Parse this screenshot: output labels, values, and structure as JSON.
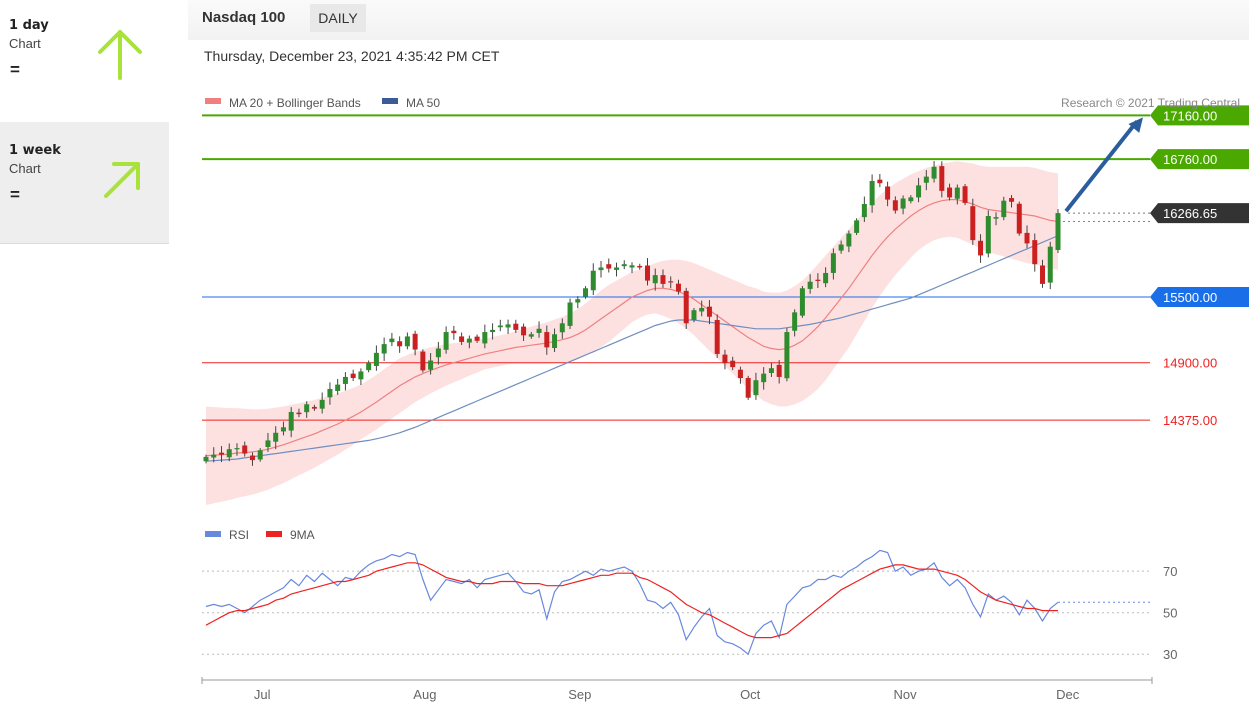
{
  "left_panel": {
    "periods": [
      {
        "name": "1 day",
        "label": "Chart",
        "symbol": "=",
        "arrow": "up-arrow",
        "arrow_color": "#a8e23a"
      },
      {
        "name": "1 week",
        "label": "Chart",
        "symbol": "=",
        "arrow": "up-right-arrow",
        "arrow_color": "#a8e23a"
      }
    ]
  },
  "header": {
    "title": "Nasdaq 100",
    "timeframe": "DAILY",
    "datetime": "Thursday, December 23, 2021 4:35:42 PM CET"
  },
  "chart_data": [
    {
      "type": "candlestick",
      "title": "Nasdaq 100",
      "legend": [
        {
          "name": "MA 20 + Bollinger Bands",
          "color": "#f08080"
        },
        {
          "name": "MA 50",
          "color": "#3a5a9a"
        }
      ],
      "copyright": "Research © 2021 Trading Central",
      "x_tick_labels": [
        "Jul",
        "Aug",
        "Sep",
        "Oct",
        "Nov",
        "Dec"
      ],
      "ylim": [
        13600,
        17300
      ],
      "levels": [
        {
          "label": "17160.00",
          "value": 17160,
          "kind": "resistance",
          "color": "#4aa800"
        },
        {
          "label": "16760.00",
          "value": 16760,
          "kind": "resistance",
          "color": "#4aa800"
        },
        {
          "label": "16266.65",
          "value": 16266.65,
          "kind": "last",
          "color": "#333333"
        },
        {
          "label": "15500.00",
          "value": 15500,
          "kind": "pivot",
          "color": "#1a6fe8"
        },
        {
          "label": "14900.00",
          "value": 14900,
          "kind": "support",
          "color": "#ee2222"
        },
        {
          "label": "14375.00",
          "value": 14375,
          "kind": "support",
          "color": "#ee2222"
        }
      ],
      "projection": {
        "from": 16266.65,
        "to": 17160,
        "color": "#2b5c9e"
      },
      "close": [
        14040,
        14060,
        14060,
        14110,
        14120,
        14070,
        14010,
        14100,
        14190,
        14260,
        14310,
        14450,
        14430,
        14520,
        14480,
        14560,
        14660,
        14700,
        14770,
        14760,
        14820,
        14900,
        14990,
        15070,
        15120,
        15050,
        15140,
        15020,
        14830,
        14920,
        15030,
        15180,
        15170,
        15090,
        15120,
        15100,
        15180,
        15200,
        15240,
        15250,
        15200,
        15150,
        15160,
        15210,
        15040,
        15160,
        15260,
        15450,
        15480,
        15580,
        15740,
        15770,
        15760,
        15770,
        15800,
        15790,
        15770,
        15650,
        15700,
        15620,
        15640,
        15550,
        15260,
        15380,
        15400,
        15320,
        14980,
        14900,
        14860,
        14760,
        14580,
        14740,
        14800,
        14850,
        14770,
        15180,
        15360,
        15580,
        15640,
        15650,
        15720,
        15900,
        15980,
        16080,
        16200,
        16350,
        16560,
        16540,
        16390,
        16290,
        16400,
        16410,
        16520,
        16600,
        16690,
        16470,
        16410,
        16500,
        16360,
        16020,
        15880,
        16240,
        16230,
        16380,
        16370,
        16080,
        15990,
        15800,
        15620,
        15960,
        16266.65
      ],
      "ma20": [
        14050,
        14055,
        14060,
        14065,
        14075,
        14080,
        14085,
        14095,
        14110,
        14130,
        14150,
        14175,
        14200,
        14225,
        14250,
        14280,
        14310,
        14340,
        14375,
        14410,
        14450,
        14495,
        14540,
        14590,
        14640,
        14690,
        14730,
        14770,
        14800,
        14830,
        14855,
        14880,
        14900,
        14920,
        14940,
        14960,
        14980,
        14995,
        15010,
        15025,
        15040,
        15050,
        15060,
        15070,
        15080,
        15095,
        15110,
        15130,
        15160,
        15200,
        15250,
        15300,
        15350,
        15400,
        15450,
        15500,
        15530,
        15560,
        15580,
        15580,
        15570,
        15550,
        15520,
        15480,
        15430,
        15380,
        15330,
        15280,
        15230,
        15180,
        15130,
        15090,
        15050,
        15030,
        15020,
        15030,
        15060,
        15100,
        15160,
        15230,
        15310,
        15400,
        15490,
        15580,
        15680,
        15780,
        15880,
        15970,
        16050,
        16120,
        16180,
        16240,
        16290,
        16330,
        16360,
        16380,
        16390,
        16390,
        16370,
        16350,
        16320,
        16300,
        16290,
        16280,
        16270,
        16260,
        16250,
        16240,
        16220,
        16200,
        16190
      ],
      "ma50": [
        14000,
        14005,
        14010,
        14015,
        14020,
        14030,
        14040,
        14050,
        14060,
        14070,
        14080,
        14090,
        14100,
        14110,
        14120,
        14130,
        14140,
        14150,
        14160,
        14170,
        14180,
        14190,
        14205,
        14220,
        14240,
        14260,
        14285,
        14310,
        14340,
        14370,
        14400,
        14430,
        14460,
        14490,
        14520,
        14550,
        14580,
        14610,
        14640,
        14670,
        14700,
        14730,
        14760,
        14790,
        14820,
        14850,
        14880,
        14910,
        14940,
        14970,
        15000,
        15030,
        15060,
        15090,
        15120,
        15150,
        15180,
        15210,
        15240,
        15260,
        15280,
        15290,
        15290,
        15290,
        15280,
        15270,
        15260,
        15250,
        15240,
        15230,
        15220,
        15210,
        15210,
        15210,
        15210,
        15220,
        15230,
        15240,
        15250,
        15265,
        15280,
        15295,
        15310,
        15330,
        15350,
        15370,
        15390,
        15410,
        15430,
        15450,
        15470,
        15490,
        15520,
        15550,
        15580,
        15610,
        15640,
        15670,
        15700,
        15730,
        15760,
        15790,
        15820,
        15850,
        15880,
        15910,
        15940,
        15970,
        16000,
        16030,
        16060
      ],
      "bb_width": [
        450,
        440,
        430,
        420,
        410,
        400,
        390,
        380,
        370,
        360,
        350,
        340,
        330,
        320,
        310,
        300,
        290,
        280,
        270,
        260,
        250,
        250,
        250,
        250,
        250,
        250,
        240,
        230,
        220,
        210,
        200,
        190,
        180,
        170,
        160,
        150,
        140,
        140,
        140,
        140,
        150,
        160,
        170,
        180,
        190,
        200,
        210,
        220,
        230,
        240,
        250,
        260,
        260,
        250,
        240,
        230,
        220,
        220,
        230,
        250,
        270,
        290,
        310,
        330,
        350,
        370,
        390,
        410,
        430,
        450,
        470,
        490,
        500,
        510,
        520,
        530,
        540,
        550,
        560,
        570,
        570,
        560,
        550,
        540,
        520,
        500,
        480,
        460,
        440,
        420,
        400,
        380,
        360,
        350,
        340,
        340,
        340,
        350,
        360,
        370,
        380,
        390,
        400,
        410,
        420,
        430,
        440,
        440,
        440,
        440,
        440
      ]
    },
    {
      "type": "line",
      "title": "RSI",
      "legend": [
        {
          "name": "RSI",
          "color": "#6688dd"
        },
        {
          "name": "9MA",
          "color": "#ee2222"
        }
      ],
      "ylim": [
        20,
        85
      ],
      "y_ticks": [
        70,
        50,
        30
      ],
      "rsi": [
        53,
        54,
        53,
        54,
        52,
        50,
        53,
        56,
        58,
        60,
        62,
        66,
        63,
        68,
        65,
        69,
        66,
        63,
        67,
        66,
        70,
        73,
        75,
        76,
        78,
        77,
        79,
        78,
        66,
        56,
        61,
        66,
        65,
        64,
        66,
        62,
        66,
        67,
        68,
        69,
        65,
        60,
        59,
        61,
        47,
        60,
        65,
        66,
        68,
        70,
        68,
        71,
        70,
        71,
        72,
        70,
        64,
        56,
        55,
        52,
        55,
        49,
        37,
        43,
        48,
        52,
        39,
        36,
        35,
        33,
        30,
        40,
        44,
        46,
        38,
        54,
        58,
        62,
        63,
        66,
        66,
        68,
        67,
        70,
        72,
        75,
        77,
        80,
        79,
        70,
        72,
        68,
        70,
        71,
        74,
        67,
        63,
        66,
        62,
        54,
        48,
        59,
        56,
        58,
        55,
        49,
        56,
        52,
        46,
        52,
        55
      ],
      "ma9": [
        44,
        46,
        48,
        50,
        51,
        51,
        52,
        53,
        54,
        56,
        57,
        59,
        60,
        61,
        62,
        63,
        64,
        65,
        65,
        66,
        67,
        68,
        70,
        71,
        72,
        73,
        74,
        74,
        73,
        71,
        69,
        67,
        66,
        65,
        65,
        64,
        64,
        64,
        65,
        65,
        65,
        64,
        64,
        64,
        63,
        63,
        63,
        64,
        65,
        66,
        67,
        68,
        68,
        69,
        69,
        69,
        67,
        66,
        64,
        62,
        60,
        57,
        54,
        52,
        50,
        49,
        47,
        45,
        43,
        41,
        39,
        38,
        38,
        38,
        39,
        40,
        43,
        46,
        49,
        52,
        55,
        58,
        61,
        63,
        65,
        67,
        69,
        71,
        72,
        73,
        73,
        72,
        71,
        71,
        71,
        70,
        69,
        68,
        66,
        63,
        60,
        58,
        56,
        55,
        54,
        53,
        52,
        52,
        51,
        51,
        51
      ]
    }
  ]
}
